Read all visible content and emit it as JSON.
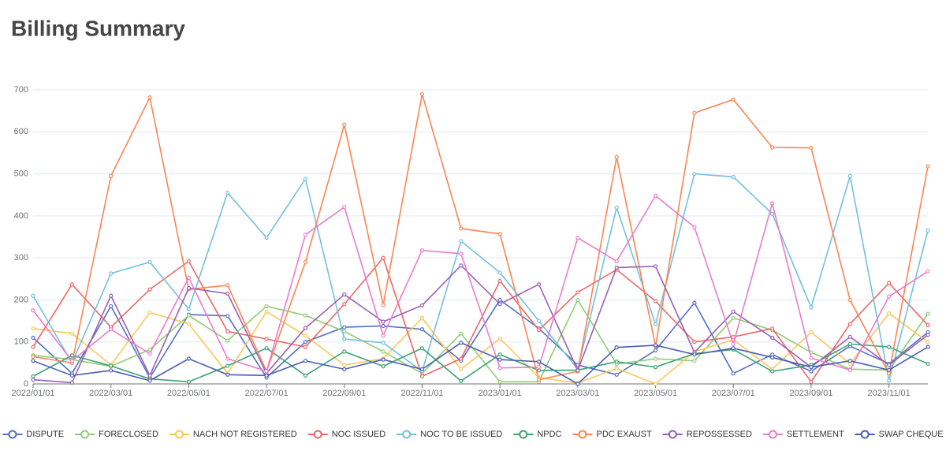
{
  "chart_data": {
    "type": "line",
    "title": "Billing Summary",
    "categories": [
      "2022/01/01",
      null,
      "2022/03/01",
      null,
      "2022/05/01",
      null,
      "2022/07/01",
      null,
      "2022/09/01",
      null,
      "2022/11/01",
      null,
      "2023/01/01",
      null,
      "2023/03/01",
      null,
      "2023/05/01",
      null,
      "2023/07/01",
      null,
      "2023/09/01",
      null,
      "2023/11/01",
      null
    ],
    "ylim": [
      0,
      700
    ],
    "yticks": [
      0,
      100,
      200,
      300,
      400,
      500,
      600,
      700
    ],
    "grid": true,
    "series": [
      {
        "name": "DISPUTE",
        "color": "#5470c6",
        "values": [
          110,
          25,
          185,
          15,
          165,
          162,
          15,
          100,
          135,
          138,
          130,
          55,
          200,
          132,
          45,
          22,
          80,
          193,
          25,
          70,
          30,
          90,
          48,
          123
        ]
      },
      {
        "name": "FORECLOSED",
        "color": "#91cc75",
        "values": [
          68,
          58,
          42,
          82,
          163,
          103,
          185,
          163,
          125,
          77,
          25,
          120,
          5,
          5,
          200,
          47,
          60,
          55,
          157,
          128,
          75,
          35,
          33,
          167
        ]
      },
      {
        "name": "NACH NOT REGISTERED",
        "color": "#fac858",
        "values": [
          132,
          120,
          45,
          170,
          143,
          25,
          172,
          115,
          45,
          60,
          157,
          35,
          108,
          15,
          2,
          37,
          0,
          77,
          105,
          35,
          123,
          48,
          168,
          100
        ]
      },
      {
        "name": "NOC ISSUED",
        "color": "#ee6666",
        "values": [
          88,
          237,
          135,
          225,
          292,
          125,
          107,
          88,
          190,
          300,
          18,
          60,
          245,
          128,
          218,
          272,
          197,
          100,
          112,
          132,
          5,
          143,
          240,
          140
        ]
      },
      {
        "name": "NOC TO BE ISSUED",
        "color": "#73c0de",
        "values": [
          210,
          50,
          263,
          290,
          178,
          455,
          348,
          488,
          107,
          98,
          30,
          340,
          265,
          150,
          35,
          420,
          142,
          500,
          493,
          405,
          182,
          495,
          8,
          365
        ]
      },
      {
        "name": "NPDC",
        "color": "#3ba272",
        "values": [
          18,
          68,
          43,
          12,
          5,
          43,
          85,
          20,
          77,
          42,
          85,
          7,
          70,
          32,
          33,
          53,
          40,
          72,
          82,
          30,
          45,
          95,
          88,
          48
        ]
      },
      {
        "name": "PDC EXAUST",
        "color": "#fc8452",
        "values": [
          65,
          50,
          495,
          682,
          225,
          235,
          30,
          290,
          617,
          188,
          690,
          370,
          357,
          10,
          30,
          540,
          90,
          645,
          677,
          563,
          562,
          200,
          25,
          518
        ]
      },
      {
        "name": "REPOSSESSED",
        "color": "#9a60b4",
        "values": [
          10,
          3,
          210,
          20,
          228,
          215,
          25,
          133,
          213,
          148,
          187,
          282,
          190,
          237,
          32,
          277,
          280,
          75,
          172,
          110,
          40,
          112,
          45,
          117
        ]
      },
      {
        "name": "SETTLEMENT",
        "color": "#ea7ccc",
        "values": [
          175,
          55,
          130,
          72,
          253,
          60,
          30,
          355,
          421,
          115,
          318,
          310,
          38,
          40,
          348,
          292,
          448,
          373,
          95,
          430,
          62,
          33,
          208,
          268
        ]
      },
      {
        "name": "SWAP CHEQUE",
        "color": "#4a5fb5",
        "values": [
          55,
          20,
          32,
          8,
          60,
          22,
          20,
          55,
          35,
          58,
          35,
          98,
          58,
          53,
          0,
          87,
          92,
          70,
          85,
          63,
          40,
          55,
          33,
          88
        ]
      }
    ]
  }
}
